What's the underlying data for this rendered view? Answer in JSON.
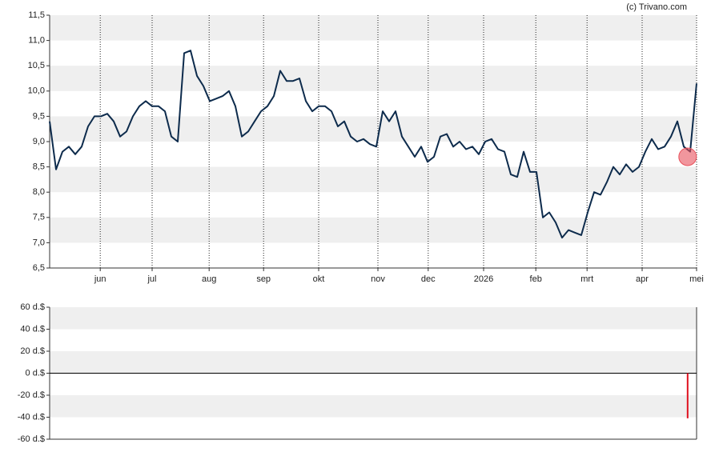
{
  "copyright": "(c) Trivano.com",
  "chart_data": [
    {
      "type": "line",
      "color": "#0d2b4c",
      "values": [
        9.4,
        8.45,
        8.8,
        8.9,
        8.75,
        8.9,
        9.3,
        9.5,
        9.5,
        9.55,
        9.4,
        9.1,
        9.2,
        9.5,
        9.7,
        9.8,
        9.7,
        9.7,
        9.6,
        9.1,
        9.0,
        10.75,
        10.8,
        10.3,
        10.1,
        9.8,
        9.85,
        9.9,
        10.0,
        9.7,
        9.1,
        9.2,
        9.4,
        9.6,
        9.7,
        9.9,
        10.4,
        10.2,
        10.2,
        10.25,
        9.8,
        9.6,
        9.7,
        9.7,
        9.6,
        9.3,
        9.4,
        9.1,
        9.0,
        9.05,
        8.95,
        8.9,
        9.6,
        9.4,
        9.6,
        9.1,
        8.9,
        8.7,
        8.9,
        8.6,
        8.7,
        9.1,
        9.15,
        8.9,
        9.0,
        8.85,
        8.9,
        8.75,
        9.0,
        9.05,
        8.85,
        8.8,
        8.35,
        8.3,
        8.8,
        8.4,
        8.4,
        7.5,
        7.6,
        7.4,
        7.1,
        7.25,
        7.2,
        7.15,
        7.6,
        8.0,
        7.95,
        8.2,
        8.5,
        8.35,
        8.55,
        8.4,
        8.5,
        8.8,
        9.05,
        8.85,
        8.9,
        9.1,
        9.4,
        8.9,
        8.8,
        10.15
      ],
      "xlim": [
        0,
        101
      ],
      "xticks": [
        {
          "value": 7.9,
          "label": "jun"
        },
        {
          "value": 16,
          "label": "jul"
        },
        {
          "value": 24.9,
          "label": "aug"
        },
        {
          "value": 33.4,
          "label": "sep"
        },
        {
          "value": 42,
          "label": "okt"
        },
        {
          "value": 51.25,
          "label": "nov"
        },
        {
          "value": 59.1,
          "label": "dec"
        },
        {
          "value": 67.75,
          "label": "2026"
        },
        {
          "value": 75.9,
          "label": "feb"
        },
        {
          "value": 83.9,
          "label": "mrt"
        },
        {
          "value": 92.5,
          "label": "apr"
        },
        {
          "value": 101,
          "label": "mei"
        }
      ],
      "ylim": [
        6.5,
        11.5
      ],
      "yticks": [
        {
          "value": 6.5,
          "label": "6,5"
        },
        {
          "value": 7,
          "label": "7,0"
        },
        {
          "value": 7.5,
          "label": "7,5"
        },
        {
          "value": 8,
          "label": "8,0"
        },
        {
          "value": 8.5,
          "label": "8,5"
        },
        {
          "value": 9,
          "label": "9,0"
        },
        {
          "value": 9.5,
          "label": "9,5"
        },
        {
          "value": 10,
          "label": "10,0"
        },
        {
          "value": 10.5,
          "label": "10,5"
        },
        {
          "value": 11,
          "label": "11,0"
        },
        {
          "value": 11.5,
          "label": "11,5"
        }
      ],
      "highlight": {
        "x": 99.6,
        "value": 8.7,
        "color": "#e8505b"
      }
    },
    {
      "type": "bar",
      "color": "#e0101e",
      "x": [
        99.6
      ],
      "values": [
        -41
      ],
      "xlim": [
        0,
        101
      ],
      "ylim": [
        -60,
        60
      ],
      "yticks": [
        {
          "value": -60,
          "label": "-60 d.$"
        },
        {
          "value": -40,
          "label": "-40 d.$"
        },
        {
          "value": -20,
          "label": "-20 d.$"
        },
        {
          "value": 0,
          "label": "0 d.$"
        },
        {
          "value": 20,
          "label": "20 d.$"
        },
        {
          "value": 40,
          "label": "40 d.$"
        },
        {
          "value": 60,
          "label": "60 d.$"
        }
      ]
    }
  ]
}
